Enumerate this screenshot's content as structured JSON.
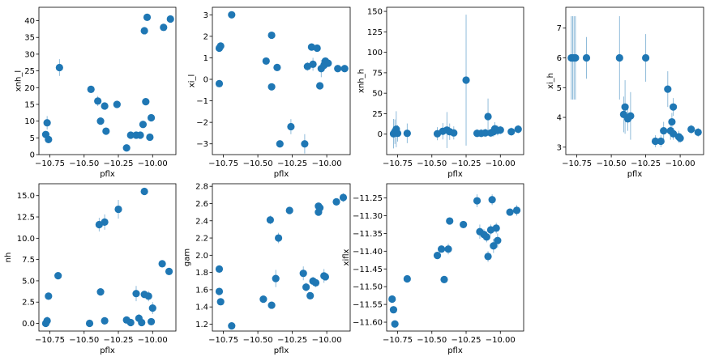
{
  "colors": {
    "marker": "#1f77b4",
    "axes": "#000000",
    "background": "#ffffff"
  },
  "chart_data": [
    {
      "type": "scatter",
      "xlabel": "pflx",
      "ylabel": "xnh_l",
      "xlim": [
        -10.83,
        -9.83
      ],
      "ylim": [
        0,
        44
      ],
      "xticks": [
        -10.75,
        -10.5,
        -10.25,
        -10.0
      ],
      "xtick_labels": [
        "−10.75",
        "−10.50",
        "−10.25",
        "−10.00"
      ],
      "yticks": [
        0,
        5,
        10,
        15,
        20,
        25,
        30,
        35,
        40
      ],
      "ytick_labels": [
        "0",
        "5",
        "10",
        "15",
        "20",
        "25",
        "30",
        "35",
        "40"
      ],
      "points": [
        {
          "x": -10.78,
          "y": 6.0,
          "err": 1.0
        },
        {
          "x": -10.77,
          "y": 9.5,
          "err": 2.0
        },
        {
          "x": -10.76,
          "y": 4.5,
          "err": 1.0
        },
        {
          "x": -10.68,
          "y": 26.0,
          "err": 2.5
        },
        {
          "x": -10.45,
          "y": 19.5,
          "err": 1.0
        },
        {
          "x": -10.4,
          "y": 16.0,
          "err": 1.5
        },
        {
          "x": -10.38,
          "y": 10.0,
          "err": 1.0
        },
        {
          "x": -10.35,
          "y": 14.5,
          "err": 1.0
        },
        {
          "x": -10.34,
          "y": 7.0,
          "err": 0.8
        },
        {
          "x": -10.26,
          "y": 15.0,
          "err": 1.0
        },
        {
          "x": -10.19,
          "y": 2.0,
          "err": 0.7
        },
        {
          "x": -10.16,
          "y": 5.8,
          "err": 0.8
        },
        {
          "x": -10.12,
          "y": 5.8,
          "err": 0.8
        },
        {
          "x": -10.09,
          "y": 5.8,
          "err": 0.8
        },
        {
          "x": -10.07,
          "y": 9.0,
          "err": 0.8
        },
        {
          "x": -10.06,
          "y": 37.0,
          "err": 1.0
        },
        {
          "x": -10.05,
          "y": 15.8,
          "err": 1.0
        },
        {
          "x": -10.04,
          "y": 41.0,
          "err": 1.0
        },
        {
          "x": -10.01,
          "y": 11.0,
          "err": 0.8
        },
        {
          "x": -10.02,
          "y": 5.2,
          "err": 0.8
        },
        {
          "x": -9.92,
          "y": 38.0,
          "err": 1.0
        },
        {
          "x": -9.87,
          "y": 40.5,
          "err": 1.0
        }
      ]
    },
    {
      "type": "scatter",
      "xlabel": "pflx",
      "ylabel": "xi_l",
      "xlim": [
        -10.83,
        -9.83
      ],
      "ylim": [
        -3.5,
        3.35
      ],
      "xticks": [
        -10.75,
        -10.5,
        -10.25,
        -10.0
      ],
      "xtick_labels": [
        "−10.75",
        "−10.50",
        "−10.25",
        "−10.00"
      ],
      "yticks": [
        -3,
        -2,
        -1,
        0,
        1,
        2,
        3
      ],
      "ytick_labels": [
        "−3",
        "−2",
        "−1",
        "0",
        "1",
        "2",
        "3"
      ],
      "points": [
        {
          "x": -10.78,
          "y": 1.45,
          "err": 0.15
        },
        {
          "x": -10.77,
          "y": 1.55,
          "err": 0.15
        },
        {
          "x": -10.78,
          "y": -0.2,
          "err": 0.12
        },
        {
          "x": -10.69,
          "y": 3.0,
          "err": 0.12
        },
        {
          "x": -10.44,
          "y": 0.85,
          "err": 0.15
        },
        {
          "x": -10.4,
          "y": 2.05,
          "err": 0.15
        },
        {
          "x": -10.4,
          "y": -0.35,
          "err": 0.12
        },
        {
          "x": -10.36,
          "y": 0.55,
          "err": 0.15
        },
        {
          "x": -10.34,
          "y": -3.0,
          "err": 0.12
        },
        {
          "x": -10.26,
          "y": -2.2,
          "err": 0.35
        },
        {
          "x": -10.16,
          "y": -3.0,
          "err": 0.45
        },
        {
          "x": -10.14,
          "y": 0.6,
          "err": 0.2
        },
        {
          "x": -10.11,
          "y": 1.5,
          "err": 0.15
        },
        {
          "x": -10.1,
          "y": 0.7,
          "err": 0.3
        },
        {
          "x": -10.07,
          "y": 1.45,
          "err": 0.15
        },
        {
          "x": -10.05,
          "y": -0.3,
          "err": 0.15
        },
        {
          "x": -10.04,
          "y": 0.5,
          "err": 0.4
        },
        {
          "x": -10.02,
          "y": 0.65,
          "err": 0.15
        },
        {
          "x": -10.01,
          "y": 0.85,
          "err": 0.15
        },
        {
          "x": -9.99,
          "y": 0.75,
          "err": 0.15
        },
        {
          "x": -9.92,
          "y": 0.5,
          "err": 0.12
        },
        {
          "x": -9.87,
          "y": 0.5,
          "err": 0.12
        }
      ]
    },
    {
      "type": "scatter",
      "xlabel": "pflx",
      "ylabel": "xnh_h",
      "xlim": [
        -10.83,
        -9.83
      ],
      "ylim": [
        -25,
        155
      ],
      "xticks": [
        -10.75,
        -10.5,
        -10.25,
        -10.0
      ],
      "xtick_labels": [
        "−10.75",
        "−10.50",
        "−10.25",
        "−10.00"
      ],
      "yticks": [
        0,
        25,
        50,
        75,
        100,
        125,
        150
      ],
      "ytick_labels": [
        "0",
        "25",
        "50",
        "75",
        "100",
        "125",
        "150"
      ],
      "points": [
        {
          "x": -10.78,
          "y": 0.5,
          "err": 18
        },
        {
          "x": -10.77,
          "y": 3.0,
          "err": 15
        },
        {
          "x": -10.76,
          "y": 6.0,
          "err": 22
        },
        {
          "x": -10.75,
          "y": 1.0,
          "err": 10
        },
        {
          "x": -10.68,
          "y": 1.0,
          "err": 12
        },
        {
          "x": -10.46,
          "y": 0.5,
          "err": 8
        },
        {
          "x": -10.42,
          "y": 3.5,
          "err": 10
        },
        {
          "x": -10.39,
          "y": 5.0,
          "err": 22
        },
        {
          "x": -10.37,
          "y": 3.0,
          "err": 10
        },
        {
          "x": -10.34,
          "y": 1.5,
          "err": 8
        },
        {
          "x": -10.25,
          "y": 66.0,
          "err": 80
        },
        {
          "x": -10.17,
          "y": 1.0,
          "err": 5
        },
        {
          "x": -10.14,
          "y": 1.0,
          "err": 5
        },
        {
          "x": -10.11,
          "y": 1.5,
          "err": 5
        },
        {
          "x": -10.09,
          "y": 21.5,
          "err": 22
        },
        {
          "x": -10.07,
          "y": 1.5,
          "err": 5
        },
        {
          "x": -10.05,
          "y": 3.0,
          "err": 6
        },
        {
          "x": -10.04,
          "y": 6.5,
          "err": 8
        },
        {
          "x": -10.02,
          "y": 4.5,
          "err": 6
        },
        {
          "x": -10.0,
          "y": 5.0,
          "err": 5
        },
        {
          "x": -9.92,
          "y": 3.0,
          "err": 5
        },
        {
          "x": -9.87,
          "y": 6.0,
          "err": 5
        }
      ]
    },
    {
      "type": "scatter",
      "xlabel": "pflx",
      "ylabel": "xi_h",
      "xlim": [
        -10.83,
        -9.83
      ],
      "ylim": [
        2.75,
        7.7
      ],
      "xticks": [
        -10.75,
        -10.5,
        -10.25,
        -10.0
      ],
      "xtick_labels": [
        "−10.75",
        "−10.50",
        "−10.25",
        "−10.00"
      ],
      "yticks": [
        3,
        4,
        5,
        6,
        7
      ],
      "ytick_labels": [
        "3",
        "4",
        "5",
        "6",
        "7"
      ],
      "points": [
        {
          "x": -10.79,
          "y": 6.0,
          "err": 1.4
        },
        {
          "x": -10.78,
          "y": 6.0,
          "err": 1.4
        },
        {
          "x": -10.77,
          "y": 6.0,
          "err": 1.4
        },
        {
          "x": -10.76,
          "y": 6.0,
          "err": 1.4
        },
        {
          "x": -10.68,
          "y": 6.0,
          "err": 0.7
        },
        {
          "x": -10.44,
          "y": 6.0,
          "err": 1.4
        },
        {
          "x": -10.41,
          "y": 4.1,
          "err": 0.6
        },
        {
          "x": -10.4,
          "y": 4.35,
          "err": 0.9
        },
        {
          "x": -10.38,
          "y": 3.95,
          "err": 0.4
        },
        {
          "x": -10.36,
          "y": 4.05,
          "err": 0.8
        },
        {
          "x": -10.25,
          "y": 6.0,
          "err": 0.8
        },
        {
          "x": -10.18,
          "y": 3.2,
          "err": 0.2
        },
        {
          "x": -10.14,
          "y": 3.2,
          "err": 0.2
        },
        {
          "x": -10.12,
          "y": 3.55,
          "err": 0.3
        },
        {
          "x": -10.09,
          "y": 4.95,
          "err": 0.6
        },
        {
          "x": -10.07,
          "y": 3.55,
          "err": 0.3
        },
        {
          "x": -10.06,
          "y": 3.85,
          "err": 0.3
        },
        {
          "x": -10.05,
          "y": 3.45,
          "err": 0.2
        },
        {
          "x": -10.05,
          "y": 4.35,
          "err": 0.3
        },
        {
          "x": -10.01,
          "y": 3.35,
          "err": 0.2
        },
        {
          "x": -10.0,
          "y": 3.3,
          "err": 0.15
        },
        {
          "x": -9.92,
          "y": 3.6,
          "err": 0.15
        },
        {
          "x": -9.87,
          "y": 3.5,
          "err": 0.15
        }
      ]
    },
    {
      "type": "scatter",
      "xlabel": "pflx",
      "ylabel": "nh",
      "xlim": [
        -10.83,
        -9.83
      ],
      "ylim": [
        -0.9,
        16.4
      ],
      "xticks": [
        -10.75,
        -10.5,
        -10.25,
        -10.0
      ],
      "xtick_labels": [
        "−10.75",
        "−10.50",
        "−10.25",
        "−10.00"
      ],
      "yticks": [
        0,
        2.5,
        5,
        7.5,
        10,
        12.5,
        15
      ],
      "ytick_labels": [
        "0.0",
        "2.5",
        "5.0",
        "7.5",
        "10.0",
        "12.5",
        "15.0"
      ],
      "points": [
        {
          "x": -10.78,
          "y": 0.0,
          "err": 0.4
        },
        {
          "x": -10.77,
          "y": 0.3,
          "err": 0.5
        },
        {
          "x": -10.76,
          "y": 3.2,
          "err": 0.4
        },
        {
          "x": -10.69,
          "y": 5.6,
          "err": 0.4
        },
        {
          "x": -10.46,
          "y": 0.0,
          "err": 0.3
        },
        {
          "x": -10.39,
          "y": 11.6,
          "err": 0.8
        },
        {
          "x": -10.38,
          "y": 3.7,
          "err": 0.4
        },
        {
          "x": -10.35,
          "y": 11.9,
          "err": 0.9
        },
        {
          "x": -10.35,
          "y": 0.3,
          "err": 0.3
        },
        {
          "x": -10.25,
          "y": 13.4,
          "err": 1.1
        },
        {
          "x": -10.19,
          "y": 0.4,
          "err": 0.4
        },
        {
          "x": -10.16,
          "y": 0.1,
          "err": 0.4
        },
        {
          "x": -10.12,
          "y": 3.5,
          "err": 0.9
        },
        {
          "x": -10.1,
          "y": 0.6,
          "err": 0.5
        },
        {
          "x": -10.08,
          "y": 0.1,
          "err": 0.4
        },
        {
          "x": -10.06,
          "y": 3.4,
          "err": 0.4
        },
        {
          "x": -10.06,
          "y": 15.5,
          "err": 0.4
        },
        {
          "x": -10.03,
          "y": 3.2,
          "err": 0.6
        },
        {
          "x": -10.01,
          "y": 0.2,
          "err": 0.4
        },
        {
          "x": -10.0,
          "y": 1.8,
          "err": 0.7
        },
        {
          "x": -9.93,
          "y": 7.0,
          "err": 0.4
        },
        {
          "x": -9.88,
          "y": 6.1,
          "err": 0.4
        }
      ]
    },
    {
      "type": "scatter",
      "xlabel": "pflx",
      "ylabel": "gam",
      "xlim": [
        -10.83,
        -9.83
      ],
      "ylim": [
        1.12,
        2.83
      ],
      "xticks": [
        -10.75,
        -10.5,
        -10.25,
        -10.0
      ],
      "xtick_labels": [
        "−10.75",
        "−10.50",
        "−10.25",
        "−10.00"
      ],
      "yticks": [
        1.2,
        1.4,
        1.6,
        1.8,
        2.0,
        2.2,
        2.4,
        2.6,
        2.8
      ],
      "ytick_labels": [
        "1.2",
        "1.4",
        "1.6",
        "1.8",
        "2.0",
        "2.2",
        "2.4",
        "2.6",
        "2.8"
      ],
      "points": [
        {
          "x": -10.78,
          "y": 1.84,
          "err": 0.04
        },
        {
          "x": -10.78,
          "y": 1.58,
          "err": 0.04
        },
        {
          "x": -10.77,
          "y": 1.46,
          "err": 0.03
        },
        {
          "x": -10.69,
          "y": 1.18,
          "err": 0.03
        },
        {
          "x": -10.46,
          "y": 1.49,
          "err": 0.03
        },
        {
          "x": -10.41,
          "y": 2.41,
          "err": 0.05
        },
        {
          "x": -10.4,
          "y": 1.42,
          "err": 0.03
        },
        {
          "x": -10.37,
          "y": 1.73,
          "err": 0.1
        },
        {
          "x": -10.35,
          "y": 2.2,
          "err": 0.06
        },
        {
          "x": -10.27,
          "y": 2.52,
          "err": 0.04
        },
        {
          "x": -10.17,
          "y": 1.79,
          "err": 0.08
        },
        {
          "x": -10.15,
          "y": 1.63,
          "err": 0.05
        },
        {
          "x": -10.12,
          "y": 1.53,
          "err": 0.04
        },
        {
          "x": -10.1,
          "y": 1.7,
          "err": 0.05
        },
        {
          "x": -10.08,
          "y": 1.68,
          "err": 0.05
        },
        {
          "x": -10.06,
          "y": 2.57,
          "err": 0.04
        },
        {
          "x": -10.06,
          "y": 2.5,
          "err": 0.04
        },
        {
          "x": -10.05,
          "y": 2.55,
          "err": 0.04
        },
        {
          "x": -10.02,
          "y": 1.76,
          "err": 0.08
        },
        {
          "x": -10.01,
          "y": 1.75,
          "err": 0.04
        },
        {
          "x": -9.93,
          "y": 2.62,
          "err": 0.04
        },
        {
          "x": -9.88,
          "y": 2.67,
          "err": 0.05
        }
      ]
    },
    {
      "type": "scatter",
      "xlabel": "pflx",
      "ylabel": "xiflx",
      "xlim": [
        -10.83,
        -9.83
      ],
      "ylim": [
        -11.625,
        -11.21
      ],
      "xticks": [
        -10.75,
        -10.5,
        -10.25,
        -10.0
      ],
      "xtick_labels": [
        "−10.75",
        "−10.50",
        "−10.25",
        "−10.00"
      ],
      "yticks": [
        -11.6,
        -11.55,
        -11.5,
        -11.45,
        -11.4,
        -11.35,
        -11.3,
        -11.25
      ],
      "ytick_labels": [
        "−11.60",
        "−11.55",
        "−11.50",
        "−11.45",
        "−11.40",
        "−11.35",
        "−11.30",
        "−11.25"
      ],
      "points": [
        {
          "x": -10.79,
          "y": -11.535,
          "err": 0.008
        },
        {
          "x": -10.78,
          "y": -11.565,
          "err": 0.008
        },
        {
          "x": -10.77,
          "y": -11.605,
          "err": 0.008
        },
        {
          "x": -10.68,
          "y": -11.478,
          "err": 0.008
        },
        {
          "x": -10.46,
          "y": -11.412,
          "err": 0.008
        },
        {
          "x": -10.43,
          "y": -11.394,
          "err": 0.008
        },
        {
          "x": -10.41,
          "y": -11.48,
          "err": 0.008
        },
        {
          "x": -10.38,
          "y": -11.394,
          "err": 0.015
        },
        {
          "x": -10.37,
          "y": -11.315,
          "err": 0.008
        },
        {
          "x": -10.27,
          "y": -11.325,
          "err": 0.008
        },
        {
          "x": -10.17,
          "y": -11.258,
          "err": 0.018
        },
        {
          "x": -10.15,
          "y": -11.345,
          "err": 0.02
        },
        {
          "x": -10.12,
          "y": -11.353,
          "err": 0.015
        },
        {
          "x": -10.1,
          "y": -11.36,
          "err": 0.015
        },
        {
          "x": -10.09,
          "y": -11.415,
          "err": 0.015
        },
        {
          "x": -10.07,
          "y": -11.34,
          "err": 0.015
        },
        {
          "x": -10.06,
          "y": -11.255,
          "err": 0.015
        },
        {
          "x": -10.05,
          "y": -11.385,
          "err": 0.02
        },
        {
          "x": -10.03,
          "y": -11.335,
          "err": 0.015
        },
        {
          "x": -10.02,
          "y": -11.37,
          "err": 0.02
        },
        {
          "x": -9.93,
          "y": -11.29,
          "err": 0.008
        },
        {
          "x": -9.88,
          "y": -11.285,
          "err": 0.015
        }
      ]
    }
  ]
}
